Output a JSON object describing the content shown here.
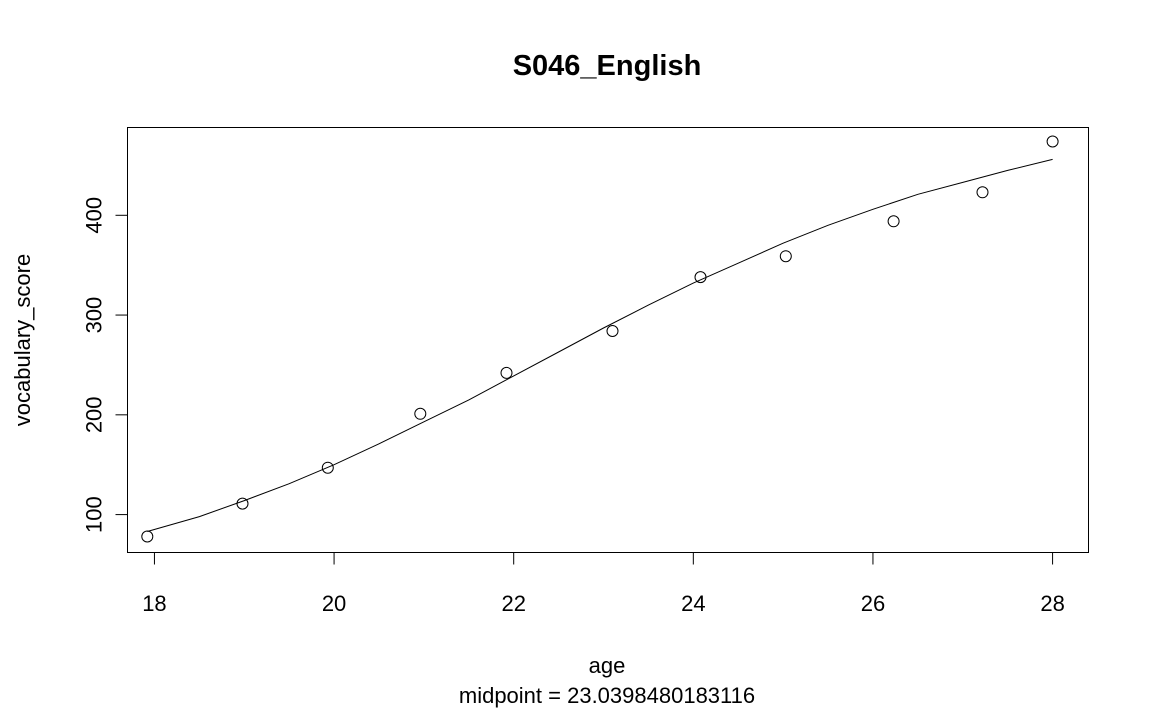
{
  "chart_data": {
    "type": "scatter",
    "title": "S046_English",
    "xlabel": "age",
    "ylabel": "vocabulary_score",
    "subtitle": "midpoint = 23.0398480183116",
    "xlim": [
      17.7,
      28.4
    ],
    "ylim": [
      62,
      488
    ],
    "x_ticks": [
      18,
      20,
      22,
      24,
      26,
      28
    ],
    "y_ticks": [
      100,
      200,
      300,
      400
    ],
    "x_tick_labels": [
      "18",
      "20",
      "22",
      "24",
      "26",
      "28"
    ],
    "y_tick_labels": [
      "100",
      "200",
      "300",
      "400"
    ],
    "grid": false,
    "series": [
      {
        "type": "scatter",
        "marker": "open-circle",
        "x": [
          17.92,
          18.98,
          19.93,
          20.96,
          21.92,
          23.1,
          24.08,
          25.03,
          26.23,
          27.22,
          28.0
        ],
        "y": [
          78,
          111,
          147,
          201,
          242,
          284,
          338,
          359,
          394,
          423,
          474
        ]
      },
      {
        "type": "line",
        "x": [
          17.92,
          18.5,
          19.0,
          19.5,
          20.0,
          20.5,
          21.0,
          21.5,
          22.0,
          22.5,
          23.0,
          23.5,
          24.0,
          24.5,
          25.0,
          25.5,
          26.0,
          26.5,
          27.0,
          27.5,
          28.0
        ],
        "y": [
          83,
          98,
          114,
          131,
          150,
          171,
          193,
          215,
          239,
          263,
          287,
          310,
          332,
          352,
          372,
          390,
          406,
          421,
          433,
          445,
          456
        ]
      }
    ]
  }
}
